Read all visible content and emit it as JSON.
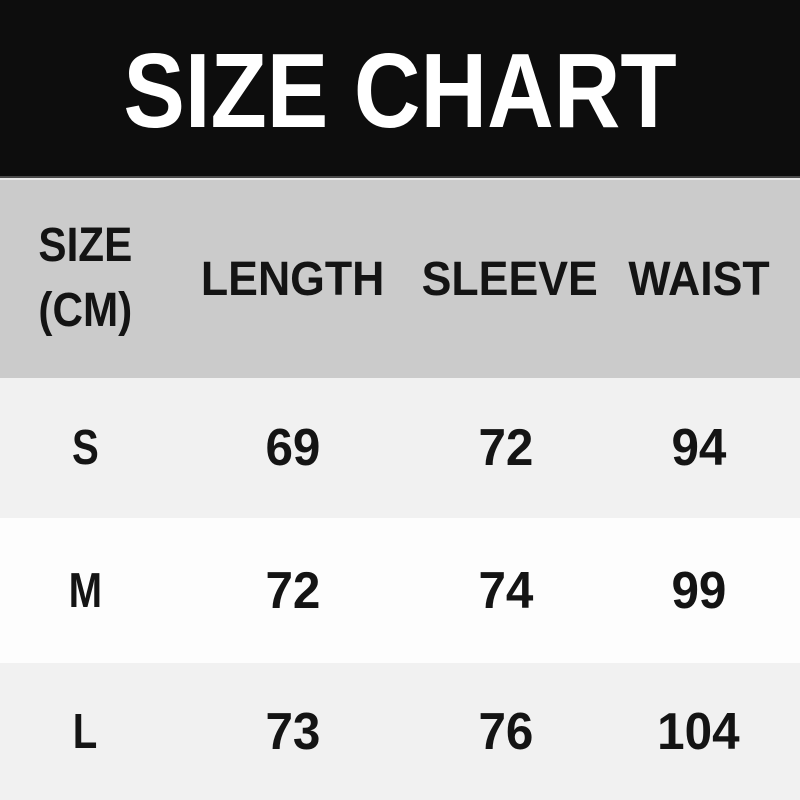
{
  "chart_data": {
    "type": "table",
    "title": "SIZE CHART",
    "unit": "CM",
    "size_column_header": {
      "line1": "SIZE",
      "line2": "(CM)"
    },
    "measure_columns": [
      "LENGTH",
      "SLEEVE",
      "WAIST"
    ],
    "rows": [
      {
        "size": "S",
        "values": [
          69,
          72,
          94
        ]
      },
      {
        "size": "M",
        "values": [
          72,
          74,
          99
        ]
      },
      {
        "size": "L",
        "values": [
          73,
          76,
          104
        ]
      }
    ]
  },
  "colors": {
    "banner_bg": "#0d0d0d",
    "banner_text": "#ffffff",
    "header_row_bg": "#cbcbcb",
    "row_alt_bg": "#f1f1f1",
    "row_bg": "#fdfdfd",
    "text": "#141414"
  }
}
